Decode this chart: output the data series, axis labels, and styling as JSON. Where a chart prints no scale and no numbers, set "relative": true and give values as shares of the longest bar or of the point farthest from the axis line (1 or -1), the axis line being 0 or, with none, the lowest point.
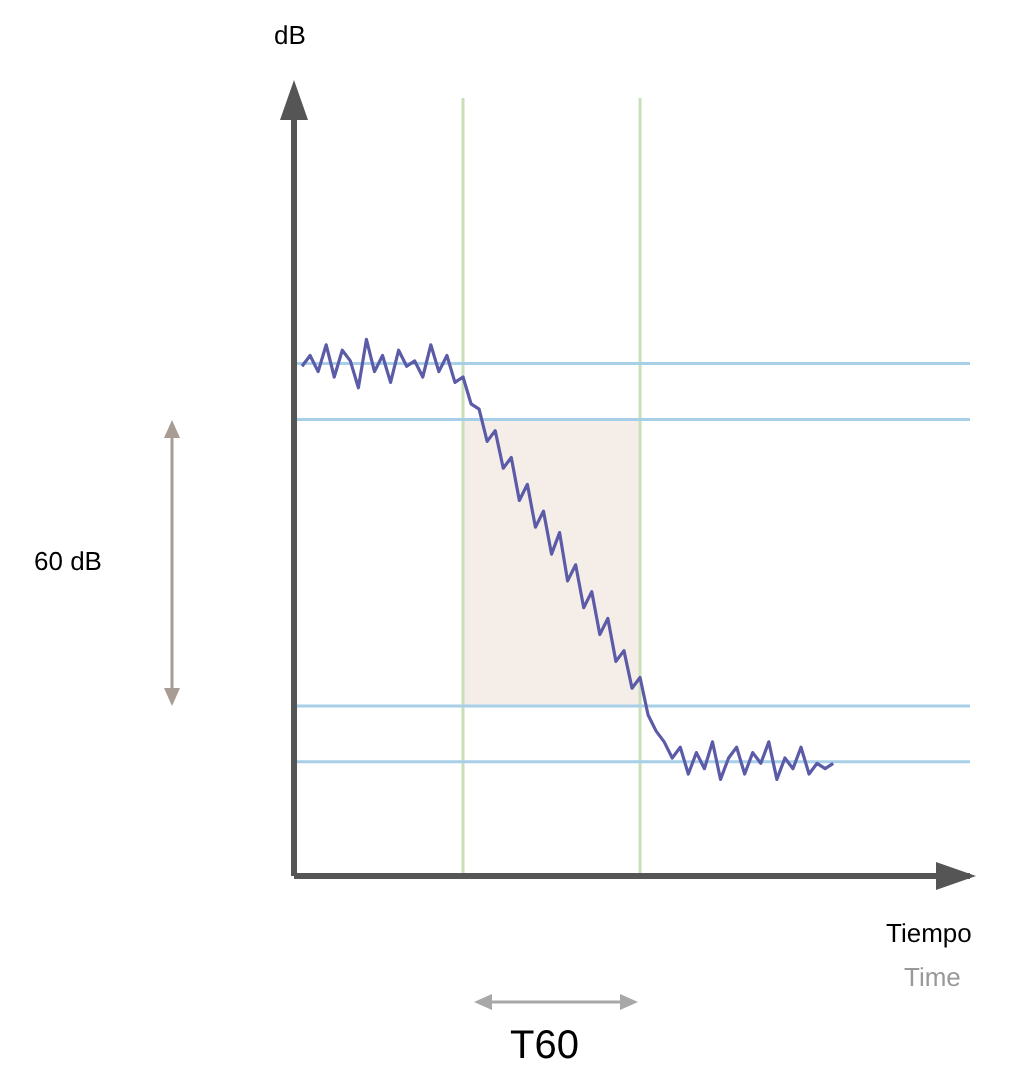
{
  "chart_data": {
    "type": "line",
    "relative": true,
    "xlabel": "Tiempo",
    "categories": [
      null,
      null,
      null,
      null,
      null,
      null,
      null,
      null,
      null,
      null,
      null,
      null,
      null,
      null,
      null,
      null,
      null,
      null,
      null,
      null,
      null,
      null,
      null,
      null,
      null,
      null,
      null,
      null,
      null,
      null,
      null,
      null,
      null,
      null,
      null,
      null,
      null,
      null,
      null,
      null,
      null,
      null,
      null,
      null,
      null,
      null,
      null,
      null,
      null,
      null,
      null,
      null,
      null,
      null,
      null,
      null,
      null,
      null,
      null,
      null,
      null,
      null,
      null,
      null,
      null,
      null,
      null,
      null,
      null,
      null,
      null,
      null,
      null,
      null,
      null,
      null,
      null,
      null,
      null,
      null,
      null,
      null,
      null,
      null,
      null
    ],
    "series": [
      {
        "color": "#5b5ba8",
        "values": [
          null,
          0.95,
          0.97,
          0.94,
          0.99,
          0.93,
          0.98,
          0.96,
          0.91,
          1.0,
          0.94,
          0.97,
          0.92,
          0.98,
          0.95,
          0.96,
          0.93,
          0.99,
          0.94,
          0.97,
          0.92,
          0.93,
          0.88,
          0.87,
          0.81,
          0.83,
          0.76,
          0.78,
          0.7,
          0.73,
          0.65,
          0.68,
          0.6,
          0.64,
          0.55,
          0.58,
          0.5,
          0.53,
          0.45,
          0.48,
          0.4,
          0.42,
          0.35,
          0.37,
          0.3,
          0.27,
          0.25,
          0.22,
          0.24,
          0.19,
          0.23,
          0.2,
          0.25,
          0.18,
          0.22,
          0.24,
          0.19,
          0.23,
          0.21,
          0.25,
          0.18,
          0.22,
          0.2,
          0.24,
          0.19,
          0.21,
          0.2,
          0.21,
          null,
          null,
          null,
          null,
          null,
          null,
          null,
          null,
          null,
          null,
          null,
          null,
          null,
          null,
          null,
          null,
          null
        ]
      }
    ],
    "ref_lines": [
      {
        "axis": "y",
        "value": 0.955,
        "color": "#a8cfe8"
      },
      {
        "axis": "y",
        "value": 0.851,
        "color": "#a8cfe8"
      },
      {
        "axis": "y",
        "value": 0.317,
        "color": "#a8cfe8"
      },
      {
        "axis": "y",
        "value": 0.213,
        "color": "#a8cfe8"
      }
    ],
    "annotations": [
      "Time",
      "60 dB",
      "T60",
      "dB"
    ],
    "marker": "none",
    "line_style": "solid"
  }
}
